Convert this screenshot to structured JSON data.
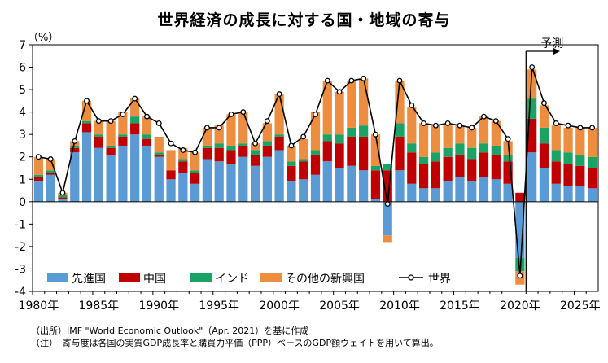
{
  "title": "世界経済の成長に対する国・地域の寄与",
  "chart_data": {
    "type": "bar",
    "stacked": true,
    "y_unit": "（%）",
    "ylim": [
      -4,
      7
    ],
    "yticks": [
      "-4",
      "-3",
      "-2",
      "-1",
      "0",
      "1",
      "2",
      "3",
      "4",
      "5",
      "6",
      "7"
    ],
    "xticks": [
      "1980年",
      "1985年",
      "1990年",
      "1995年",
      "2000年",
      "2005年",
      "2010年",
      "2015年",
      "2020年",
      "2025年"
    ],
    "forecast_label": "予測",
    "forecast_from": 2021,
    "categories": [
      1980,
      1981,
      1982,
      1983,
      1984,
      1985,
      1986,
      1987,
      1988,
      1989,
      1990,
      1991,
      1992,
      1993,
      1994,
      1995,
      1996,
      1997,
      1998,
      1999,
      2000,
      2001,
      2002,
      2003,
      2004,
      2005,
      2006,
      2007,
      2008,
      2009,
      2010,
      2011,
      2012,
      2013,
      2014,
      2015,
      2016,
      2017,
      2018,
      2019,
      2020,
      2021,
      2022,
      2023,
      2024,
      2025,
      2026
    ],
    "series": [
      {
        "name": "先進国",
        "color": "#5b9bd5",
        "values": [
          0.9,
          1.2,
          0.1,
          2.2,
          3.1,
          2.4,
          2.1,
          2.5,
          3.0,
          2.5,
          2.0,
          1.0,
          1.3,
          0.8,
          1.9,
          1.8,
          1.7,
          2.0,
          1.6,
          2.0,
          2.3,
          0.9,
          1.0,
          1.2,
          1.8,
          1.5,
          1.6,
          1.4,
          0.1,
          -1.5,
          1.4,
          0.8,
          0.6,
          0.6,
          0.9,
          1.1,
          0.9,
          1.1,
          1.0,
          0.8,
          -2.5,
          2.2,
          1.5,
          0.8,
          0.7,
          0.7,
          0.6
        ]
      },
      {
        "name": "中国",
        "color": "#c00000",
        "values": [
          0.2,
          0.1,
          0.1,
          0.2,
          0.4,
          0.5,
          0.3,
          0.4,
          0.5,
          0.3,
          0.1,
          0.4,
          0.5,
          0.5,
          0.5,
          0.6,
          0.6,
          0.5,
          0.5,
          0.5,
          0.6,
          0.7,
          0.8,
          0.9,
          0.9,
          1.1,
          1.3,
          1.5,
          1.3,
          1.4,
          1.5,
          1.4,
          1.1,
          1.2,
          1.1,
          1.0,
          1.0,
          1.1,
          1.1,
          1.0,
          0.4,
          1.5,
          1.1,
          1.0,
          1.0,
          0.9,
          0.9
        ]
      },
      {
        "name": "インド",
        "color": "#1aa364",
        "values": [
          0.1,
          0.1,
          0.1,
          0.1,
          0.1,
          0.1,
          0.1,
          0.1,
          0.3,
          0.2,
          0.1,
          0.0,
          0.1,
          0.1,
          0.1,
          0.2,
          0.2,
          0.1,
          0.2,
          0.2,
          0.1,
          0.2,
          0.1,
          0.2,
          0.3,
          0.4,
          0.4,
          0.5,
          0.2,
          0.3,
          0.6,
          0.4,
          0.3,
          0.4,
          0.4,
          0.5,
          0.5,
          0.4,
          0.4,
          0.3,
          -0.6,
          0.9,
          0.7,
          0.5,
          0.5,
          0.5,
          0.5
        ]
      },
      {
        "name": "その他の新興国",
        "color": "#ed8d3f",
        "values": [
          0.8,
          0.5,
          0.1,
          0.2,
          0.9,
          0.6,
          1.1,
          1.0,
          0.8,
          0.8,
          0.7,
          0.9,
          0.5,
          0.8,
          0.8,
          0.8,
          1.4,
          1.4,
          0.3,
          0.8,
          1.8,
          0.7,
          0.9,
          1.7,
          2.4,
          1.9,
          2.1,
          2.1,
          1.4,
          -0.3,
          1.9,
          1.6,
          1.5,
          1.2,
          1.0,
          0.8,
          0.9,
          1.2,
          1.1,
          0.6,
          -0.6,
          1.3,
          1.0,
          1.1,
          1.1,
          1.2,
          1.3
        ]
      }
    ],
    "line": {
      "name": "世界",
      "color": "#000000",
      "values": [
        2.0,
        1.9,
        0.4,
        2.7,
        4.5,
        3.6,
        3.6,
        3.9,
        4.6,
        3.8,
        3.5,
        2.6,
        2.3,
        2.2,
        3.3,
        3.3,
        3.9,
        4.0,
        2.6,
        3.6,
        4.8,
        2.5,
        2.9,
        3.9,
        5.4,
        4.9,
        5.4,
        5.5,
        3.0,
        -0.1,
        5.4,
        4.3,
        3.5,
        3.4,
        3.5,
        3.4,
        3.3,
        3.8,
        3.6,
        2.8,
        -3.3,
        6.0,
        4.4,
        3.5,
        3.4,
        3.3,
        3.3
      ]
    }
  },
  "notes": {
    "source": "（出所）IMF \"World Economic Outlook\"（Apr. 2021）を基に作成",
    "footnote": "（注）　寄与度は各国の実質GDP成長率と購買力平価（PPP）ベースのGDP額ウェイトを用いて算出。"
  }
}
